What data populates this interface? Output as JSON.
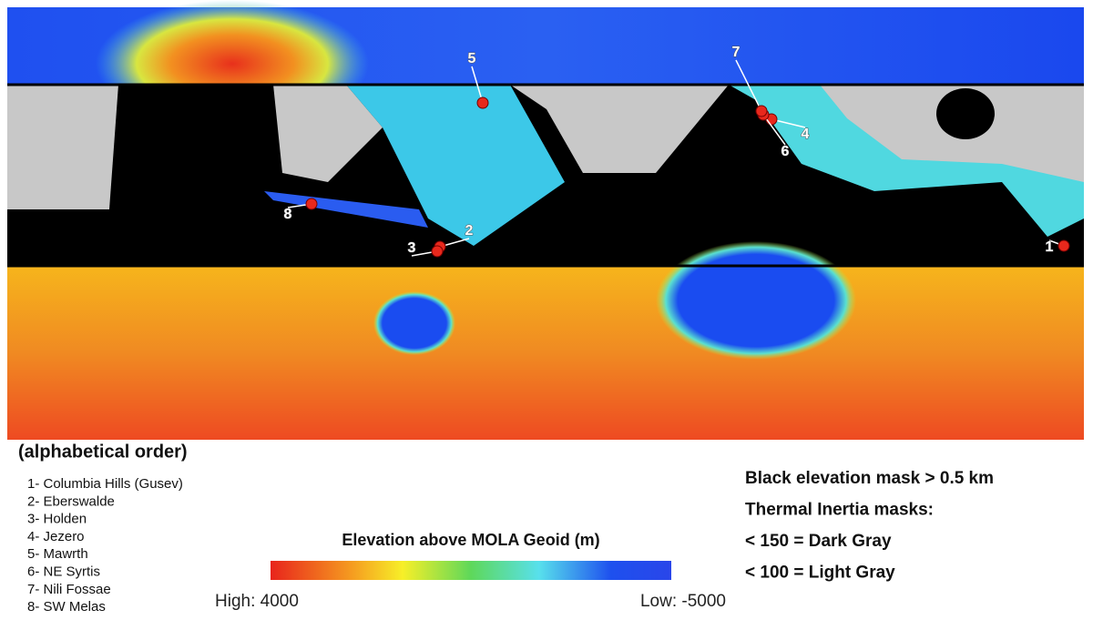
{
  "map": {
    "markers": [
      "1",
      "2",
      "3",
      "4",
      "5",
      "6",
      "7",
      "8"
    ]
  },
  "legend": {
    "heading": "(alphabetical order)",
    "sites": [
      "1- Columbia Hills (Gusev)",
      "2- Eberswalde",
      "3- Holden",
      "4- Jezero",
      "5- Mawrth",
      "6- NE Syrtis",
      "7- Nili Fossae",
      "8- SW Melas"
    ]
  },
  "colorbar": {
    "title": "Elevation above MOLA Geoid (m)",
    "high": "High: 4000",
    "low": "Low: -5000"
  },
  "masks": {
    "lines": [
      "Black elevation mask > 0.5 km",
      "Thermal Inertia masks:",
      "< 150 = Dark Gray",
      "< 100 = Light Gray"
    ]
  }
}
